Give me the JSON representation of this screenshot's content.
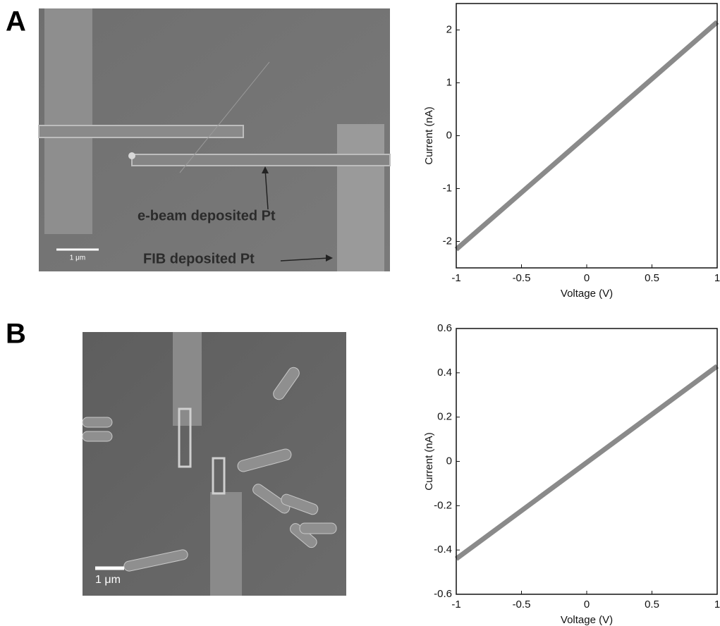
{
  "panels": [
    {
      "label": "A",
      "annotations": [
        "e-beam deposited Pt",
        "FIB deposited Pt"
      ],
      "scale_bar": "1 μm"
    },
    {
      "label": "B",
      "scale_bar": "1 μm"
    }
  ],
  "chart_data": [
    {
      "type": "line",
      "x_label": "Voltage (V)",
      "y_label": "Current (nA)",
      "x": [
        -1,
        1
      ],
      "values": [
        -2.15,
        2.15
      ],
      "color": "#8a8a8a",
      "xlim": [
        -1,
        1
      ],
      "xticks": [
        -1,
        -0.5,
        0,
        0.5,
        1
      ],
      "ylim": [
        -2.5,
        2.5
      ],
      "yticks": [
        -2,
        -1,
        0,
        1,
        2
      ]
    },
    {
      "type": "line",
      "x_label": "Voltage (V)",
      "y_label": "Current (nA)",
      "x": [
        -1,
        1
      ],
      "values": [
        -0.44,
        0.43
      ],
      "color": "#8a8a8a",
      "xlim": [
        -1,
        1
      ],
      "xticks": [
        -1,
        -0.5,
        0,
        0.5,
        1
      ],
      "ylim": [
        -0.6,
        0.6
      ],
      "yticks": [
        -0.6,
        -0.4,
        -0.2,
        0,
        0.2,
        0.4,
        0.6
      ]
    }
  ]
}
